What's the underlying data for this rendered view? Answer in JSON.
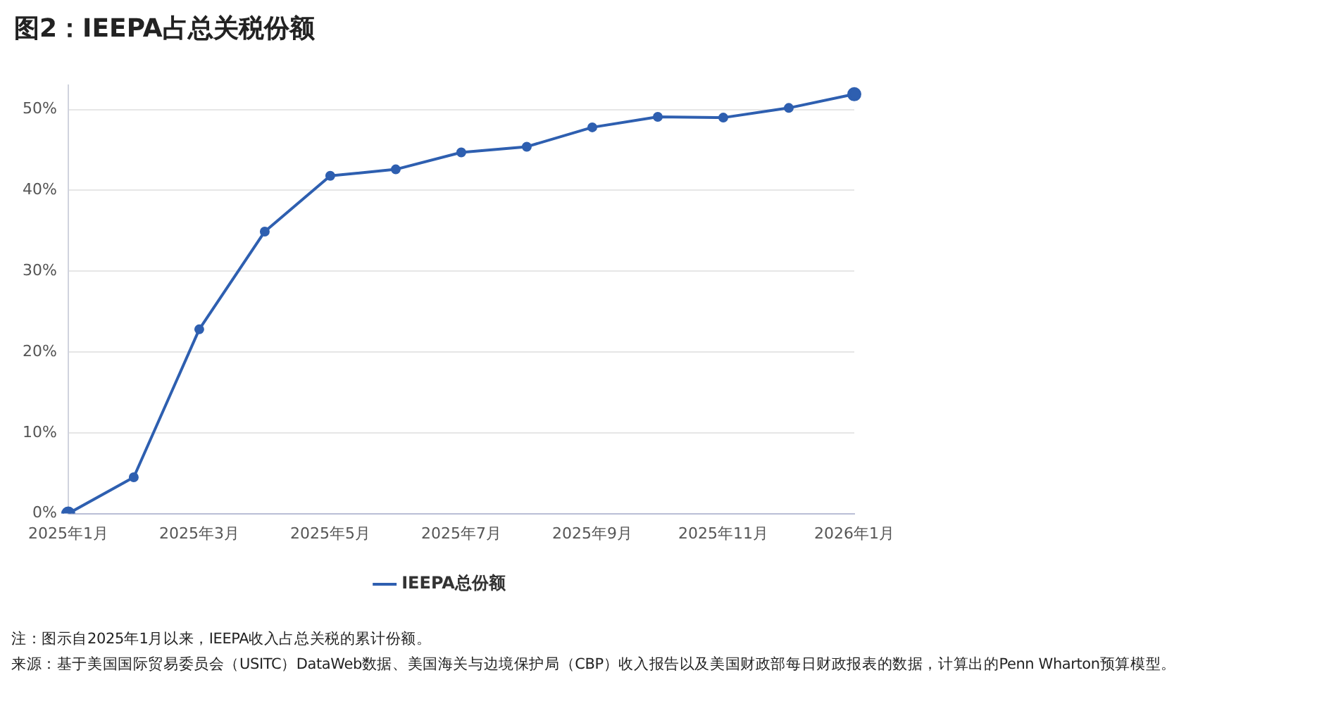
{
  "chart_data": {
    "type": "line",
    "title": "图2：IEEPA占总关税份额",
    "categories": [
      "2025年1月",
      null,
      "2025年3月",
      null,
      "2025年5月",
      null,
      "2025年7月",
      null,
      "2025年9月",
      null,
      "2025年11月",
      null,
      "2026年1月"
    ],
    "series": [
      {
        "name": "IEEPA总份额",
        "color": "#2e5fb0",
        "values": [
          0,
          4.5,
          22.8,
          34.9,
          41.8,
          42.6,
          44.7,
          45.4,
          47.8,
          49.1,
          49.0,
          50.2,
          51.9
        ]
      }
    ],
    "ylim": [
      0,
      53
    ],
    "yticks": [
      {
        "value": 0,
        "label": "0%"
      },
      {
        "value": 10,
        "label": "10%"
      },
      {
        "value": 20,
        "label": "20%"
      },
      {
        "value": 30,
        "label": "30%"
      },
      {
        "value": 40,
        "label": "40%"
      },
      {
        "value": 50,
        "label": "50%"
      }
    ],
    "grid": "y",
    "legend": "bottom",
    "marker": "circle",
    "line_style": "solid",
    "annotations": [
      "注：图示自2025年1月以来，IEEPA收入占总关税的累计份额。",
      "来源：基于美国国际贸易委员会（USITC）DataWeb数据、美国海关与边境保护局（CBP）收入报告以及美国财政部每日财政报表的数据，计算出的Penn Wharton预算模型。"
    ]
  }
}
